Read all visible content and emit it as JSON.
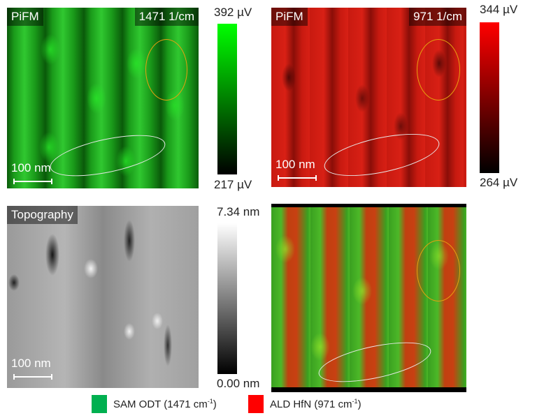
{
  "panels": {
    "green": {
      "label": "PiFM",
      "wavenumber": "1471 1/cm",
      "scale": "100 nm"
    },
    "red": {
      "label": "PiFM",
      "wavenumber": "971 1/cm",
      "scale": "100 nm"
    },
    "topography": {
      "label": "Topography",
      "scale": "100 nm"
    }
  },
  "colorbars": {
    "green": {
      "max": "392 µV",
      "min": "217 µV",
      "color": "#00ff00"
    },
    "red": {
      "max": "344 µV",
      "min": "264 µV",
      "color": "#ff0000"
    },
    "gray": {
      "max": "7.34 nm",
      "min": "0.00 nm"
    }
  },
  "legend": [
    {
      "name": "SAM ODT (1471 cm",
      "sup": "-1",
      "close": ")",
      "color": "#00b050"
    },
    {
      "name": "ALD HfN (971 cm",
      "sup": "-1",
      "close": ")",
      "color": "#ff0000"
    }
  ]
}
